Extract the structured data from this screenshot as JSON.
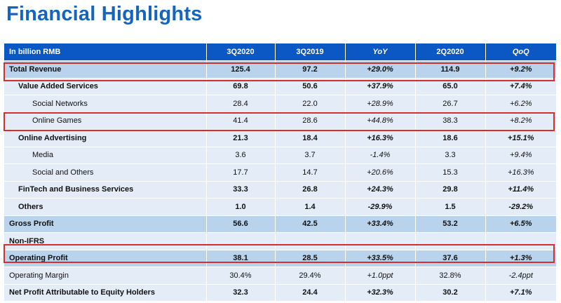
{
  "title": "Financial Highlights",
  "table": {
    "headers": [
      "In billion RMB",
      "3Q2020",
      "3Q2019",
      "YoY",
      "2Q2020",
      "QoQ"
    ],
    "rows": [
      {
        "label": "Total Revenue",
        "values": [
          "125.4",
          "97.2",
          "+29.0%",
          "114.9",
          "+9.2%"
        ]
      },
      {
        "label": "Value Added Services",
        "values": [
          "69.8",
          "50.6",
          "+37.9%",
          "65.0",
          "+7.4%"
        ]
      },
      {
        "label": "Social Networks",
        "values": [
          "28.4",
          "22.0",
          "+28.9%",
          "26.7",
          "+6.2%"
        ]
      },
      {
        "label": "Online Games",
        "values": [
          "41.4",
          "28.6",
          "+44.8%",
          "38.3",
          "+8.2%"
        ]
      },
      {
        "label": "Online Advertising",
        "values": [
          "21.3",
          "18.4",
          "+16.3%",
          "18.6",
          "+15.1%"
        ]
      },
      {
        "label": "Media",
        "values": [
          "3.6",
          "3.7",
          "-1.4%",
          "3.3",
          "+9.4%"
        ]
      },
      {
        "label": "Social and Others",
        "values": [
          "17.7",
          "14.7",
          "+20.6%",
          "15.3",
          "+16.3%"
        ]
      },
      {
        "label": "FinTech and Business Services",
        "values": [
          "33.3",
          "26.8",
          "+24.3%",
          "29.8",
          "+11.4%"
        ]
      },
      {
        "label": "Others",
        "values": [
          "1.0",
          "1.4",
          "-29.9%",
          "1.5",
          "-29.2%"
        ]
      },
      {
        "label": "Gross Profit",
        "values": [
          "56.6",
          "42.5",
          "+33.4%",
          "53.2",
          "+6.5%"
        ]
      },
      {
        "label": "Non-IFRS",
        "values": [
          "",
          "",
          "",
          "",
          ""
        ]
      },
      {
        "label": "Operating Profit",
        "values": [
          "38.1",
          "28.5",
          "+33.5%",
          "37.6",
          "+1.3%"
        ]
      },
      {
        "label": "Operating Margin",
        "values": [
          "30.4%",
          "29.4%",
          "+1.0ppt",
          "32.8%",
          "-2.4ppt"
        ]
      },
      {
        "label": "Net Profit Attributable to Equity Holders",
        "values": [
          "32.3",
          "24.4",
          "+32.3%",
          "30.2",
          "+7.1%"
        ]
      }
    ]
  },
  "colors": {
    "title": "#1565c0",
    "header_bg": "#0b58c4",
    "row_bg": "#e3ecf7",
    "highlight_row_bg": "#b9d3ec",
    "box_border": "#d32f2f"
  }
}
